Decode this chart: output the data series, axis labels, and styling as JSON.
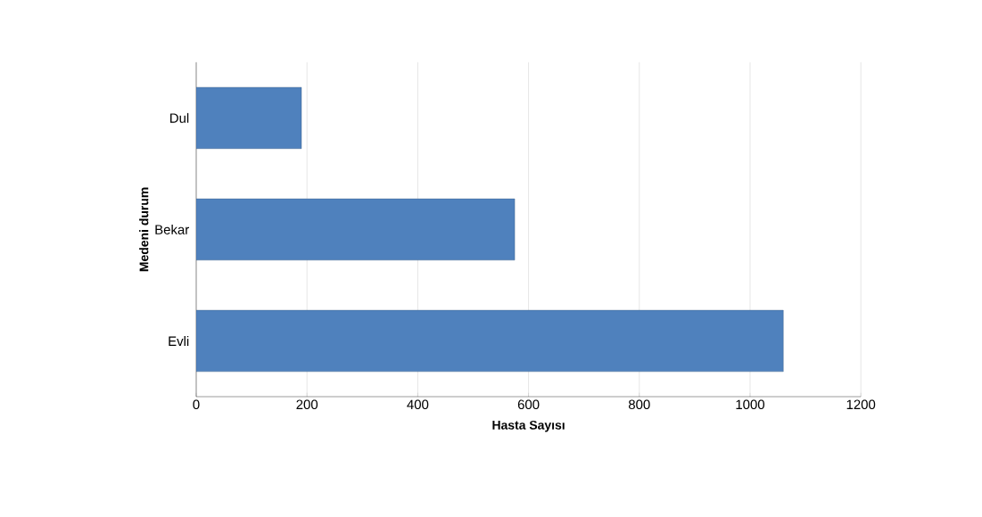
{
  "chart_data": {
    "type": "bar",
    "orientation": "horizontal",
    "categories": [
      "Dul",
      "Bekar",
      "Evli"
    ],
    "values": [
      190,
      575,
      1060
    ],
    "color": "#4f81bd",
    "xlabel": "Hasta Sayısı",
    "ylabel": "Medeni durum",
    "xlim": [
      0,
      1200
    ],
    "xticks": [
      0,
      200,
      400,
      600,
      800,
      1000,
      1200
    ],
    "grid": "x"
  }
}
